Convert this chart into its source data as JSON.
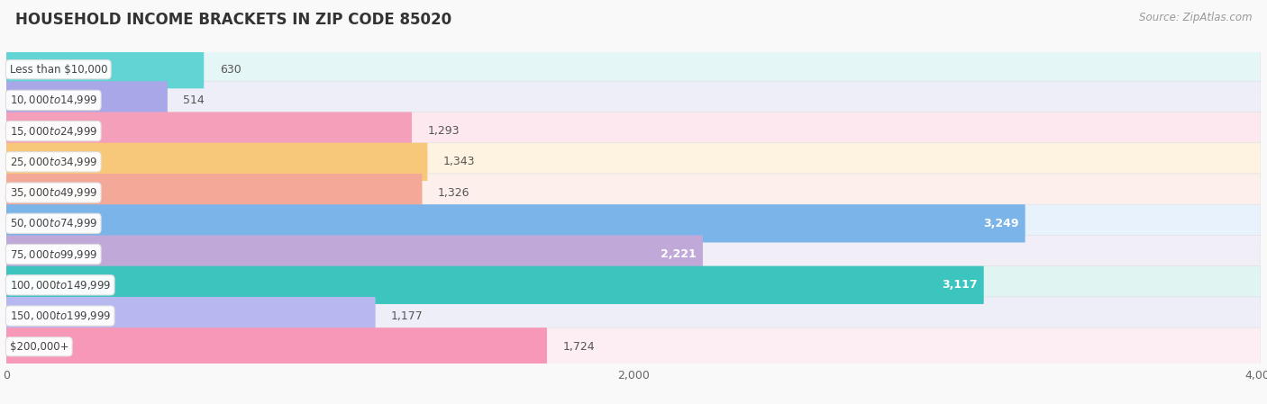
{
  "title": "HOUSEHOLD INCOME BRACKETS IN ZIP CODE 85020",
  "source": "Source: ZipAtlas.com",
  "categories": [
    "Less than $10,000",
    "$10,000 to $14,999",
    "$15,000 to $24,999",
    "$25,000 to $34,999",
    "$35,000 to $49,999",
    "$50,000 to $74,999",
    "$75,000 to $99,999",
    "$100,000 to $149,999",
    "$150,000 to $199,999",
    "$200,000+"
  ],
  "values": [
    630,
    514,
    1293,
    1343,
    1326,
    3249,
    2221,
    3117,
    1177,
    1724
  ],
  "bar_colors": [
    "#62d4d4",
    "#a8a8e8",
    "#f4a0ba",
    "#f8c87a",
    "#f4a898",
    "#7ab4e8",
    "#c0a8d8",
    "#3cc4be",
    "#b8b8f0",
    "#f898b8"
  ],
  "bar_bg_colors": [
    "#e4f6f6",
    "#eeeef8",
    "#fde8f0",
    "#fef3e0",
    "#fdf0ec",
    "#e8f2fc",
    "#f2eef8",
    "#e0f4f2",
    "#eeeef8",
    "#fdeef4"
  ],
  "row_bg_colors": [
    "#f5f5f5",
    "#fafafa",
    "#f5f5f5",
    "#fafafa",
    "#f5f5f5",
    "#fafafa",
    "#f5f5f5",
    "#fafafa",
    "#f5f5f5",
    "#fafafa"
  ],
  "xlim": [
    0,
    4000
  ],
  "xticks": [
    0,
    2000,
    4000
  ],
  "bg_color": "#f9f9f9",
  "title_fontsize": 12,
  "source_fontsize": 8.5,
  "bar_label_fontsize": 9,
  "cat_label_fontsize": 8.5,
  "inside_label_threshold": 2000
}
